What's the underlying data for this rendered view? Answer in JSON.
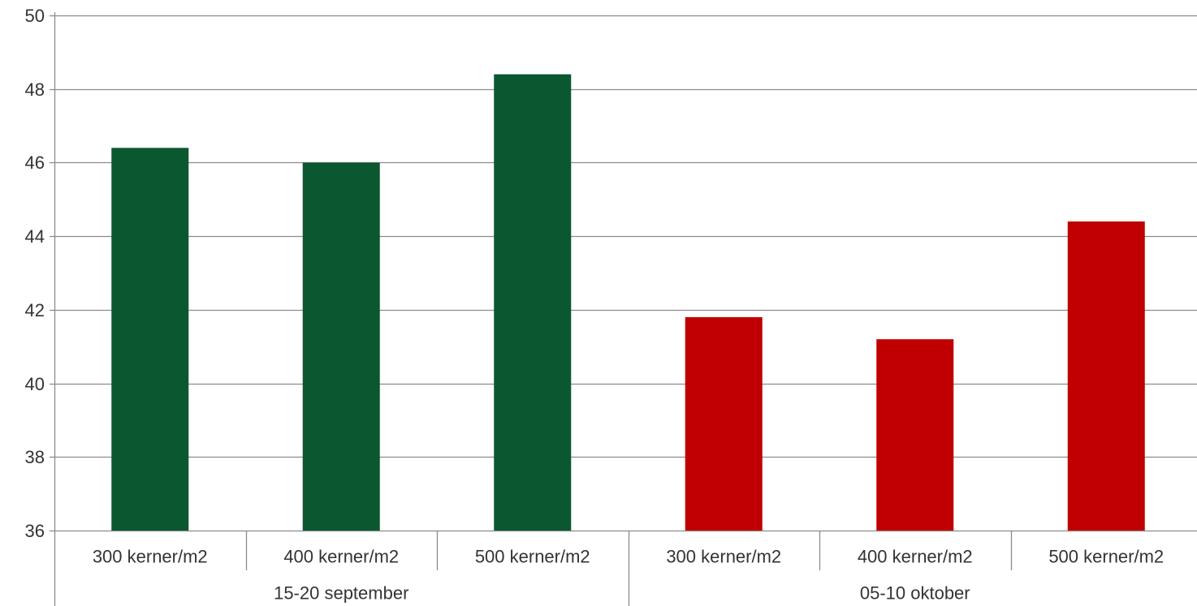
{
  "chart_data": {
    "type": "bar",
    "title": "",
    "xlabel": "",
    "ylabel": "",
    "ylim": [
      36,
      50
    ],
    "yticks": [
      36,
      38,
      40,
      42,
      44,
      46,
      48,
      50
    ],
    "grid": true,
    "legend": "none",
    "groups": [
      {
        "label": "15-20 september",
        "color": "#0b5730",
        "categories": [
          "300 kerner/m2",
          "400 kerner/m2",
          "500 kerner/m2"
        ],
        "values": [
          46.4,
          46.0,
          48.4
        ]
      },
      {
        "label": "05-10 oktober",
        "color": "#c00000",
        "categories": [
          "300 kerner/m2",
          "400 kerner/m2",
          "500 kerner/m2"
        ],
        "values": [
          41.8,
          41.2,
          44.4
        ]
      }
    ],
    "colors": {
      "grid": "#8c8c8c",
      "axis": "#8c8c8c",
      "text": "#333333"
    }
  }
}
